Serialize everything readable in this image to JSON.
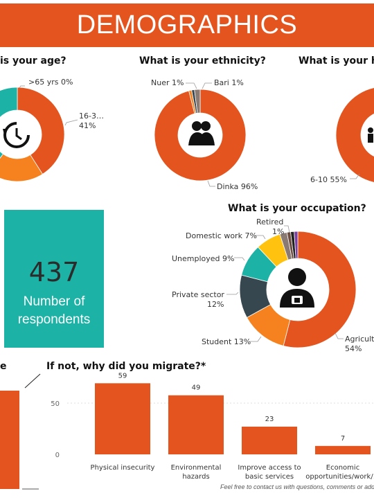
{
  "banner": {
    "title": "DEMOGRAPHICS"
  },
  "colors": {
    "orange": "#e3541e",
    "teal": "#1cb3a6",
    "light_orange": "#f5821f",
    "dark_slate": "#37474f",
    "yellow": "#ffc20e",
    "grey": "#8a7a74"
  },
  "icons": [
    "clock-icon",
    "people-icon",
    "person-icon",
    "worker-icon"
  ],
  "kpi": {
    "value": "437",
    "label_line1": "Number of",
    "label_line2": "respondents"
  },
  "footer": {
    "text": "Feel free to contact us with questions, comments or additional"
  },
  "chart_data": [
    {
      "type": "pie",
      "title": "is your age?",
      "labels": [
        ">65 yrs 0%",
        "16-3…",
        "41%"
      ],
      "slices": [
        {
          "label": "16-3…",
          "value": 41,
          "color": "#e3541e"
        },
        {
          "label": "",
          "value": 19,
          "color": "#f5821f"
        },
        {
          "label": "",
          "value": 40,
          "color": "#1cb3a6"
        },
        {
          "label": ">65 yrs",
          "value": 0,
          "color": "#8a7a74"
        }
      ]
    },
    {
      "type": "pie",
      "title": "What is your ethnicity?",
      "slices": [
        {
          "label": "Dinka 96%",
          "value": 96,
          "color": "#e3541e"
        },
        {
          "label": "Nuer 1%",
          "value": 1,
          "color": "#f5821f"
        },
        {
          "label": "Bari 1%",
          "value": 1,
          "color": "#37474f"
        },
        {
          "label": "",
          "value": 2,
          "color": "#8a7a74"
        }
      ]
    },
    {
      "type": "pie",
      "title": "What is your h",
      "slices": [
        {
          "label": "6-10 55%",
          "value": 55,
          "color": "#e3541e"
        }
      ]
    },
    {
      "type": "pie",
      "title": "What is your occupation?",
      "slices": [
        {
          "label": "Agricultu",
          "pct": "54%",
          "value": 54,
          "color": "#e3541e"
        },
        {
          "label": "Student 13%",
          "value": 13,
          "color": "#f5821f"
        },
        {
          "label": "Private sector",
          "pct": "12%",
          "value": 12,
          "color": "#37474f"
        },
        {
          "label": "Unemployed 9%",
          "value": 9,
          "color": "#1cb3a6"
        },
        {
          "label": "Domestic work 7%",
          "value": 7,
          "color": "#ffc20e"
        },
        {
          "label": "",
          "value": 2,
          "color": "#8a7a74"
        },
        {
          "label": "",
          "value": 1,
          "color": "#6d4c41"
        },
        {
          "label": "Retired",
          "pct": "1%",
          "value": 1,
          "color": "#222222"
        },
        {
          "label": "",
          "value": 1,
          "color": "#7b3fa0"
        }
      ]
    },
    {
      "type": "bar",
      "title": "If not, why did you migrate?*",
      "categories": [
        [
          "Physical insecurity"
        ],
        [
          "Environmental",
          "hazards"
        ],
        [
          "Improve access to",
          "basic services"
        ],
        [
          "Economic",
          "opportunities/work/…"
        ]
      ],
      "values": [
        59,
        49,
        23,
        7
      ],
      "yticks": [
        "50",
        "0"
      ],
      "ylim": [
        0,
        65
      ],
      "color": "#e3541e"
    },
    {
      "type": "bar",
      "title": "e",
      "values": [],
      "color": "#e3541e"
    }
  ]
}
